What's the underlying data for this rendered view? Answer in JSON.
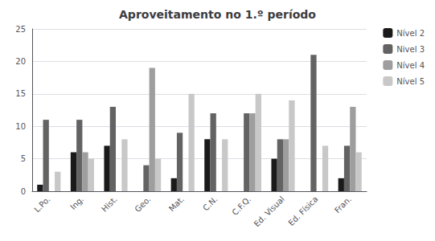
{
  "chart_data": {
    "type": "bar",
    "title": "Aproveitamento no 1.º período",
    "categories": [
      "L.Po.",
      "Ing.",
      "Hist.",
      "Geo.",
      "Mat.",
      "C.N.",
      "C.F.Q.",
      "Ed. Visual",
      "Ed. Física",
      "Fran."
    ],
    "series": [
      {
        "name": "Nível 2",
        "color": "#1a1a1a",
        "values": [
          1,
          6,
          7,
          0,
          2,
          8,
          0,
          5,
          0,
          2
        ]
      },
      {
        "name": "Nivel 3",
        "color": "#636363",
        "values": [
          11,
          11,
          13,
          4,
          9,
          12,
          12,
          8,
          21,
          7
        ]
      },
      {
        "name": "Nível 4",
        "color": "#9e9e9e",
        "values": [
          0,
          6,
          0,
          19,
          0,
          0,
          12,
          8,
          0,
          13
        ]
      },
      {
        "name": "Nível 5",
        "color": "#c8c8c8",
        "values": [
          3,
          5,
          8,
          5,
          15,
          8,
          15,
          14,
          7,
          6
        ]
      }
    ],
    "ylim": [
      0,
      25
    ],
    "yticks": [
      0,
      5,
      10,
      15,
      20,
      25
    ],
    "grid": true,
    "legend": "upper right"
  }
}
